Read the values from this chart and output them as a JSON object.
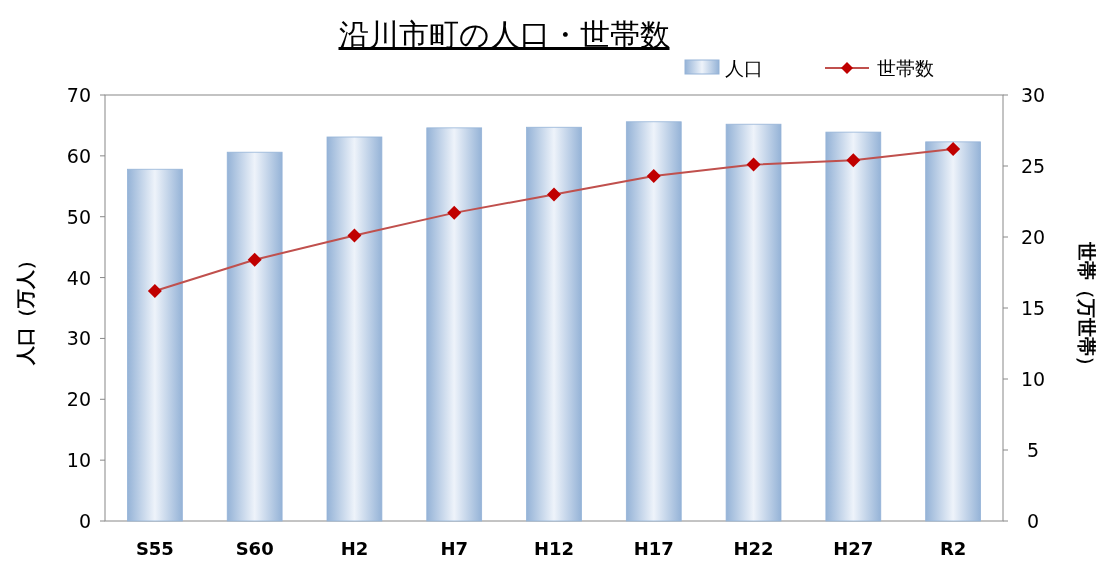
{
  "chart_data": {
    "type": "bar",
    "title": "沿川市町の人口・世帯数",
    "ylabel": "人口（万人）",
    "y2label": "世帯（万世帯）",
    "categories": [
      "S55",
      "S60",
      "H2",
      "H7",
      "H12",
      "H17",
      "H22",
      "H27",
      "R2"
    ],
    "series": [
      {
        "name": "人口",
        "color": "#95b3d7",
        "values": [
          57.8,
          60.6,
          63.1,
          64.6,
          64.7,
          65.6,
          65.2,
          63.9,
          62.3
        ]
      },
      {
        "name": "世帯数",
        "type": "line",
        "axis": "y2",
        "color": "#c0504d",
        "marker": "diamond",
        "values": [
          16.2,
          18.4,
          20.1,
          21.7,
          23.0,
          24.3,
          25.1,
          25.4,
          26.2
        ]
      }
    ],
    "ylim": [
      0,
      70
    ],
    "yticks": [
      0,
      10,
      20,
      30,
      40,
      50,
      60,
      70
    ],
    "y2lim": [
      0,
      30
    ],
    "y2ticks": [
      0,
      5,
      10,
      15,
      20,
      25,
      30
    ],
    "legend": "top right",
    "grid": false
  }
}
